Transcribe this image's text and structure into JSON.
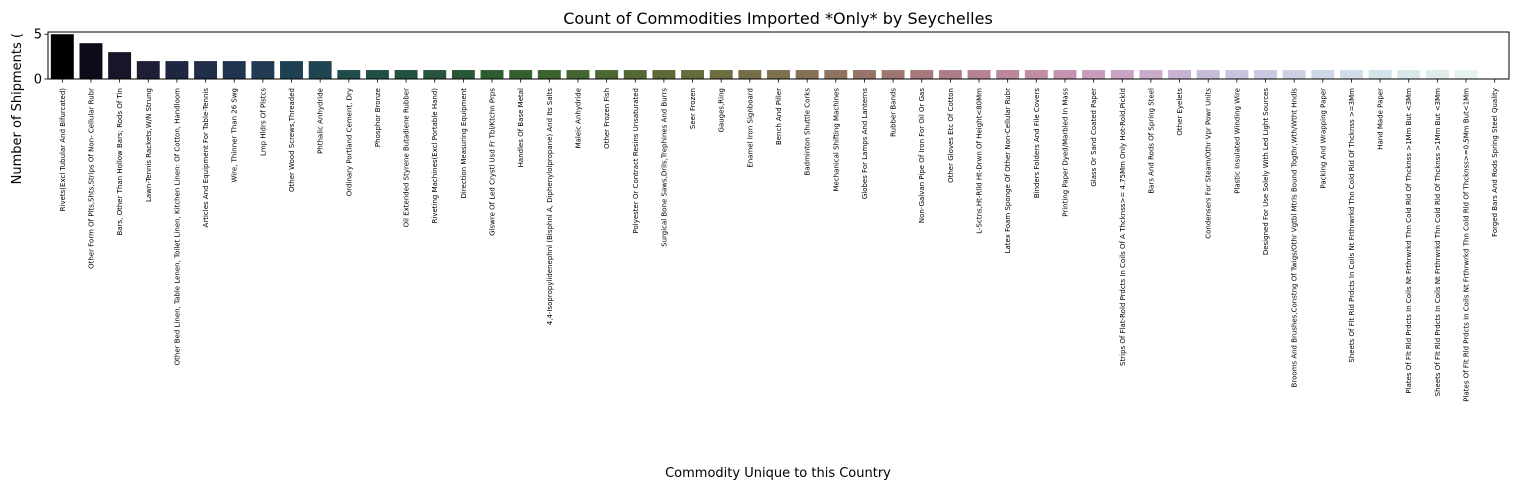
{
  "chart_data": {
    "type": "bar",
    "title": "Count of Commodities Imported *Only* by Seychelles",
    "xlabel": "Commodity Unique to this Country",
    "ylabel": "Number of Shipments (",
    "ylim": [
      0,
      5.25
    ],
    "yticks": [
      0,
      5
    ],
    "grid": false,
    "categories": [
      "Rivets(Excl Tubular And Bifurcated)",
      "Other Form Of Plts,Shts,Strips Of Non- Cellular Rubr",
      "Bars, Other Than Hollow Bars; Rods Of Tin",
      "Lawn-Tennis Rackets,W/N Strung",
      "Other Bed Linen, Table Lenen, Toilet Linen, Kitchen Linen: Of Cotton, Handloom",
      "Articles And Equipment For Table-Tennis",
      "Wire, Thinner Than 26 Swg",
      "Lmp Hldrs Of Plstcs",
      "Other Wood Screws,Threaded",
      "Phthalic Anhydride",
      "Ordinary Portland Cement, Dry",
      "Phosphor Bronze",
      "Oil Extended Styrene Butadiene Rubber",
      "Riveting Machines(Excl Portable Hand)",
      "Direction Measuring Equipment",
      "Glswre Of Led Crystl Usd Fr Tbl/Ktchn Prps",
      "Handles Of Base Metal",
      "4,4-Isopropylidenephnl (Bisphnl A, Diphenylolpropane) And Its Salts",
      "Maleic Anhydride",
      "Other Frozen Fish",
      "Polyester Or Contract Resins Unsaturated",
      "Surgical Bone Saws,Drils,Trephines And Burrs",
      "Seer Frozen",
      "Gauges,Ring",
      "Enamel Iron Signboard",
      "Bench And Piller",
      "Badminton Shuttle Corks",
      "Mechanical Shifting Machines",
      "Globes For Lamps And Lanterns",
      "Rubber Bands",
      "Non-Galvan Pipe Of Iron For Oil Or Gas",
      "Other Gloves Etc Of Cotton",
      "L-Sctns,Ht-Rlld Ht-Drwn Of Height<80Mm",
      "Latex Foam Sponge Of Other Non-Cellular Rubr",
      "Binders Folders And File Covers",
      "Printing Paper Dyed/Marbled In Mass",
      "Glass Or Sand Coated Paper",
      "Strips Of Flat-Rold Prdcts In Coils Of A Thcknss>= 4.75Mm Only Hot-Rold,Pickld",
      "Bars And Rods Of Spring Steel",
      "Other Eyelets",
      "Condensers For Steam/Othr Vpr Powr Units",
      "Plastic Insulated Winding Wire",
      "Designed For Use Solely With Led Light Sources",
      "Brooms And Brushes,Constng Of Twigs/Othr Vgtbl Mtrls Bound Togthr,Wth/Wtht Hndls",
      "Packing And Wrapping Paper",
      "Sheets Of Flt Rld Prdcts In Coils Nt Frthrwrkd Thn Cold Rld Of Thcknss >=3Mm",
      "Hand Made Paper",
      "Plates Of Flt Rld Prdcts In Coils Nt Frthrwrkd Thn Cold Rld Of Thcknss >1Mm But <3Mm",
      "Sheets Of Flt Rld Prdcts In Coils Nt Frthrwrkd Thn Cold Rld Of Thcknss >1Mm But <3Mm",
      "Plates Of Flt Rld Prdcts In Coils Nt Frthrwrkd Thn Cold Rld Of Thcknss>=0.5Mm But<1Mm",
      "Forged Bars And Rods Spring Steel Quality"
    ],
    "values": [
      5,
      4,
      3,
      2,
      2,
      2,
      2,
      2,
      2,
      2,
      1,
      1,
      1,
      1,
      1,
      1,
      1,
      1,
      1,
      1,
      1,
      1,
      1,
      1,
      1,
      1,
      1,
      1,
      1,
      1,
      1,
      1,
      1,
      1,
      1,
      1,
      1,
      1,
      1,
      1,
      1,
      1,
      1,
      1,
      1,
      1,
      1,
      1,
      1,
      1,
      0
    ],
    "colors": [
      "#000000",
      "#0f0a18",
      "#1a1428",
      "#1e1e35",
      "#1f263f",
      "#202e48",
      "#20344f",
      "#203b52",
      "#1f4052",
      "#1f4650",
      "#1f4b4c",
      "#214e47",
      "#225140",
      "#26553c",
      "#295836",
      "#2e5c31",
      "#345f2e",
      "#3c622d",
      "#43652f",
      "#4b6732",
      "#526934",
      "#5b6b37",
      "#646c3b",
      "#6d6d40",
      "#766e46",
      "#7e704e",
      "#877156",
      "#8f735e",
      "#977468",
      "#9f7671",
      "#a7797c",
      "#af7d87",
      "#b68191",
      "#bc869c",
      "#c18ca6",
      "#c593b1",
      "#c79bba",
      "#c8a3c3",
      "#c8abcb",
      "#c8b3d2",
      "#c8bbd8",
      "#c8c3de",
      "#c9cae2",
      "#cbd0e5",
      "#cdd6e7",
      "#d0dce8",
      "#d4e2e9",
      "#d9e7ea",
      "#dfecec",
      "#e6f2ef",
      "#ffffff"
    ]
  }
}
